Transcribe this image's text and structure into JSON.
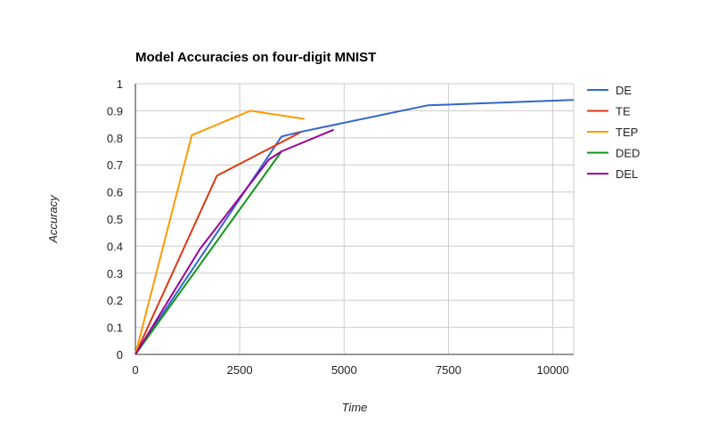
{
  "chart_data": {
    "type": "line",
    "title": "Model Accuracies on four-digit MNIST",
    "xlabel": "Time",
    "ylabel": "Accuracy",
    "xlim": [
      0,
      10500
    ],
    "ylim": [
      0,
      1
    ],
    "xticks": [
      0,
      2500,
      5000,
      7500,
      10000
    ],
    "yticks": [
      0,
      0.1,
      0.2,
      0.3,
      0.4,
      0.5,
      0.6,
      0.7,
      0.8,
      0.9,
      1
    ],
    "xtick_labels": [
      "0",
      "2500",
      "5000",
      "7500",
      "10000"
    ],
    "ytick_labels": [
      "0",
      "0.1",
      "0.2",
      "0.3",
      "0.4",
      "0.5",
      "0.6",
      "0.7",
      "0.8",
      "0.9",
      "1"
    ],
    "grid": true,
    "legend_position": "right",
    "series": [
      {
        "name": "DE",
        "color": "#3366cc",
        "points": [
          [
            0,
            0
          ],
          [
            3500,
            0.805
          ],
          [
            3900,
            0.82
          ],
          [
            7000,
            0.92
          ],
          [
            10500,
            0.94
          ]
        ]
      },
      {
        "name": "TE",
        "color": "#dc3912",
        "points": [
          [
            0,
            0
          ],
          [
            1950,
            0.66
          ],
          [
            3950,
            0.82
          ]
        ]
      },
      {
        "name": "TEP",
        "color": "#ff9900",
        "points": [
          [
            0,
            0
          ],
          [
            1350,
            0.81
          ],
          [
            2750,
            0.9
          ],
          [
            4050,
            0.87
          ]
        ]
      },
      {
        "name": "DED",
        "color": "#109618",
        "points": [
          [
            0,
            0
          ],
          [
            3500,
            0.75
          ]
        ]
      },
      {
        "name": "DEL",
        "color": "#990099",
        "points": [
          [
            0,
            0
          ],
          [
            1550,
            0.39
          ],
          [
            3200,
            0.72
          ],
          [
            3500,
            0.75
          ],
          [
            4750,
            0.83
          ]
        ]
      }
    ]
  }
}
